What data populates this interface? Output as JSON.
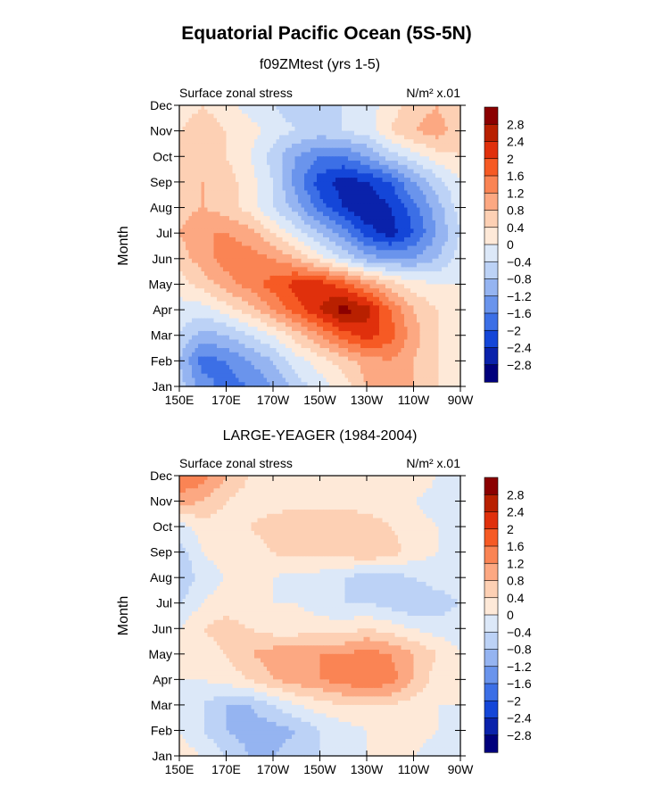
{
  "figure": {
    "title": "Equatorial Pacific Ocean (5S-5N)",
    "colorbar_levels": [
      "2.8",
      "2.4",
      "2",
      "1.6",
      "1.2",
      "0.8",
      "0.4",
      "0",
      "−0.4",
      "−0.8",
      "−1.2",
      "−1.6",
      "−2",
      "−2.4",
      "−2.8"
    ],
    "colorbar_colors": [
      "#8b0000",
      "#b82000",
      "#e0300c",
      "#f65a24",
      "#fa8454",
      "#fca882",
      "#fdd0b4",
      "#fee9d8",
      "#dce8f8",
      "#bcd2f6",
      "#95b4f1",
      "#6a94ec",
      "#3c6fe6",
      "#1446d8",
      "#0a22ab",
      "#00007c"
    ]
  },
  "chart_data": [
    {
      "type": "heatmap",
      "title": "f09ZMtest (yrs 1-5)",
      "left_label": "Surface zonal stress",
      "right_label": "N/m² x.01",
      "xlabel": "",
      "ylabel": "Month",
      "x_ticks": [
        "150E",
        "170E",
        "170W",
        "150W",
        "130W",
        "110W",
        "90W"
      ],
      "y_ticks": [
        "Jan",
        "Feb",
        "Mar",
        "Apr",
        "May",
        "Jun",
        "Jul",
        "Aug",
        "Sep",
        "Oct",
        "Nov",
        "Dec"
      ],
      "xlim_degE": [
        150,
        270
      ],
      "contour_levels": [
        -2.8,
        -2.4,
        -2.0,
        -1.6,
        -1.2,
        -0.8,
        -0.4,
        0,
        0.4,
        0.8,
        1.2,
        1.6,
        2.0,
        2.4,
        2.8
      ],
      "grid_lon_degE": [
        150,
        160,
        170,
        180,
        190,
        200,
        210,
        220,
        230,
        240,
        250,
        260,
        270
      ],
      "values_by_month": [
        [
          -0.6,
          -1.4,
          -1.8,
          -1.6,
          -1.2,
          -0.6,
          -0.2,
          0.2,
          0.8,
          1.0,
          0.8,
          0.4,
          0.2
        ],
        [
          -0.8,
          -1.8,
          -1.6,
          -1.2,
          -0.8,
          -0.2,
          0.2,
          0.6,
          1.0,
          1.2,
          0.8,
          0.4,
          0.2
        ],
        [
          -0.4,
          -1.0,
          -0.8,
          -0.4,
          0.0,
          0.6,
          1.2,
          1.8,
          2.2,
          1.8,
          1.0,
          0.4,
          0.2
        ],
        [
          -0.2,
          -0.2,
          0.2,
          0.6,
          1.2,
          1.8,
          2.4,
          3.0,
          2.6,
          1.6,
          0.8,
          0.4,
          0.2
        ],
        [
          0.2,
          0.6,
          1.0,
          1.4,
          1.8,
          2.2,
          2.2,
          1.8,
          1.2,
          0.6,
          0.2,
          0.0,
          0.0
        ],
        [
          0.6,
          1.0,
          1.4,
          1.4,
          1.2,
          0.8,
          0.2,
          -0.4,
          -1.0,
          -1.2,
          -1.2,
          -0.8,
          -0.2
        ],
        [
          0.8,
          1.2,
          1.2,
          1.0,
          0.4,
          -0.2,
          -0.8,
          -1.4,
          -2.2,
          -2.6,
          -2.0,
          -1.2,
          -0.4
        ],
        [
          0.6,
          0.8,
          0.6,
          0.2,
          -0.4,
          -1.0,
          -1.8,
          -2.4,
          -2.8,
          -2.4,
          -1.8,
          -1.0,
          -0.2
        ],
        [
          0.6,
          0.8,
          0.6,
          0.2,
          -0.4,
          -1.4,
          -2.2,
          -2.6,
          -2.4,
          -2.0,
          -1.2,
          -0.6,
          0.0
        ],
        [
          0.4,
          0.6,
          0.4,
          0.0,
          -0.6,
          -1.2,
          -1.6,
          -1.6,
          -1.2,
          -0.6,
          -0.2,
          0.2,
          0.4
        ],
        [
          0.4,
          0.6,
          0.4,
          0.2,
          -0.2,
          -0.4,
          -0.6,
          -0.4,
          -0.2,
          0.4,
          0.8,
          1.0,
          0.6
        ],
        [
          0.2,
          0.4,
          0.2,
          -0.2,
          -0.4,
          -0.6,
          -0.6,
          -0.4,
          -0.2,
          0.2,
          0.6,
          0.8,
          0.4
        ]
      ]
    },
    {
      "type": "heatmap",
      "title": "LARGE-YEAGER (1984-2004)",
      "left_label": "Surface zonal stress",
      "right_label": "N/m² x.01",
      "xlabel": "",
      "ylabel": "Month",
      "x_ticks": [
        "150E",
        "170E",
        "170W",
        "150W",
        "130W",
        "110W",
        "90W"
      ],
      "y_ticks": [
        "Jan",
        "Feb",
        "Mar",
        "Apr",
        "May",
        "Jun",
        "Jul",
        "Aug",
        "Sep",
        "Oct",
        "Nov",
        "Dec"
      ],
      "xlim_degE": [
        150,
        270
      ],
      "contour_levels": [
        -2.8,
        -2.4,
        -2.0,
        -1.6,
        -1.2,
        -0.8,
        -0.4,
        0,
        0.4,
        0.8,
        1.2,
        1.6,
        2.0,
        2.4,
        2.8
      ],
      "grid_lon_degE": [
        150,
        160,
        170,
        180,
        190,
        200,
        210,
        220,
        230,
        240,
        250,
        260,
        270
      ],
      "values_by_month": [
        [
          0.2,
          0.0,
          -0.4,
          -0.8,
          -0.8,
          -0.6,
          -0.4,
          -0.2,
          0.0,
          0.0,
          0.0,
          -0.2,
          -0.2
        ],
        [
          0.0,
          -0.4,
          -0.8,
          -1.0,
          -1.0,
          -0.8,
          -0.4,
          -0.2,
          0.0,
          0.2,
          0.2,
          0.0,
          -0.2
        ],
        [
          0.0,
          -0.4,
          -0.8,
          -0.8,
          -0.4,
          0.0,
          0.2,
          0.4,
          0.4,
          0.4,
          0.2,
          0.0,
          0.0
        ],
        [
          0.0,
          0.0,
          0.2,
          0.4,
          0.8,
          1.0,
          1.2,
          1.4,
          1.6,
          1.4,
          0.8,
          0.2,
          0.0
        ],
        [
          0.0,
          0.2,
          0.4,
          0.8,
          1.0,
          1.0,
          1.2,
          1.2,
          1.4,
          1.2,
          0.8,
          0.4,
          0.0
        ],
        [
          0.0,
          0.4,
          0.6,
          0.4,
          0.2,
          0.2,
          0.2,
          0.2,
          0.4,
          0.2,
          0.0,
          -0.2,
          -0.2
        ],
        [
          -0.4,
          0.0,
          0.2,
          0.0,
          0.0,
          0.0,
          -0.2,
          -0.4,
          -0.4,
          -0.6,
          -0.8,
          -0.6,
          -0.4
        ],
        [
          -0.8,
          -0.2,
          0.0,
          0.2,
          0.0,
          -0.2,
          -0.2,
          -0.4,
          -0.6,
          -0.6,
          -0.4,
          -0.2,
          -0.2
        ],
        [
          -0.6,
          0.0,
          0.2,
          0.2,
          0.4,
          0.6,
          0.6,
          0.6,
          0.8,
          0.6,
          0.2,
          0.0,
          -0.2
        ],
        [
          -0.2,
          0.2,
          0.2,
          0.4,
          0.6,
          0.8,
          0.8,
          0.8,
          0.6,
          0.4,
          0.2,
          0.0,
          -0.2
        ],
        [
          1.0,
          0.8,
          0.4,
          0.2,
          0.2,
          0.2,
          0.2,
          0.2,
          0.2,
          0.2,
          0.0,
          -0.2,
          -0.2
        ],
        [
          1.6,
          1.4,
          0.8,
          0.4,
          0.2,
          0.0,
          0.0,
          0.0,
          0.2,
          0.4,
          0.4,
          0.0,
          -0.2
        ]
      ]
    }
  ]
}
